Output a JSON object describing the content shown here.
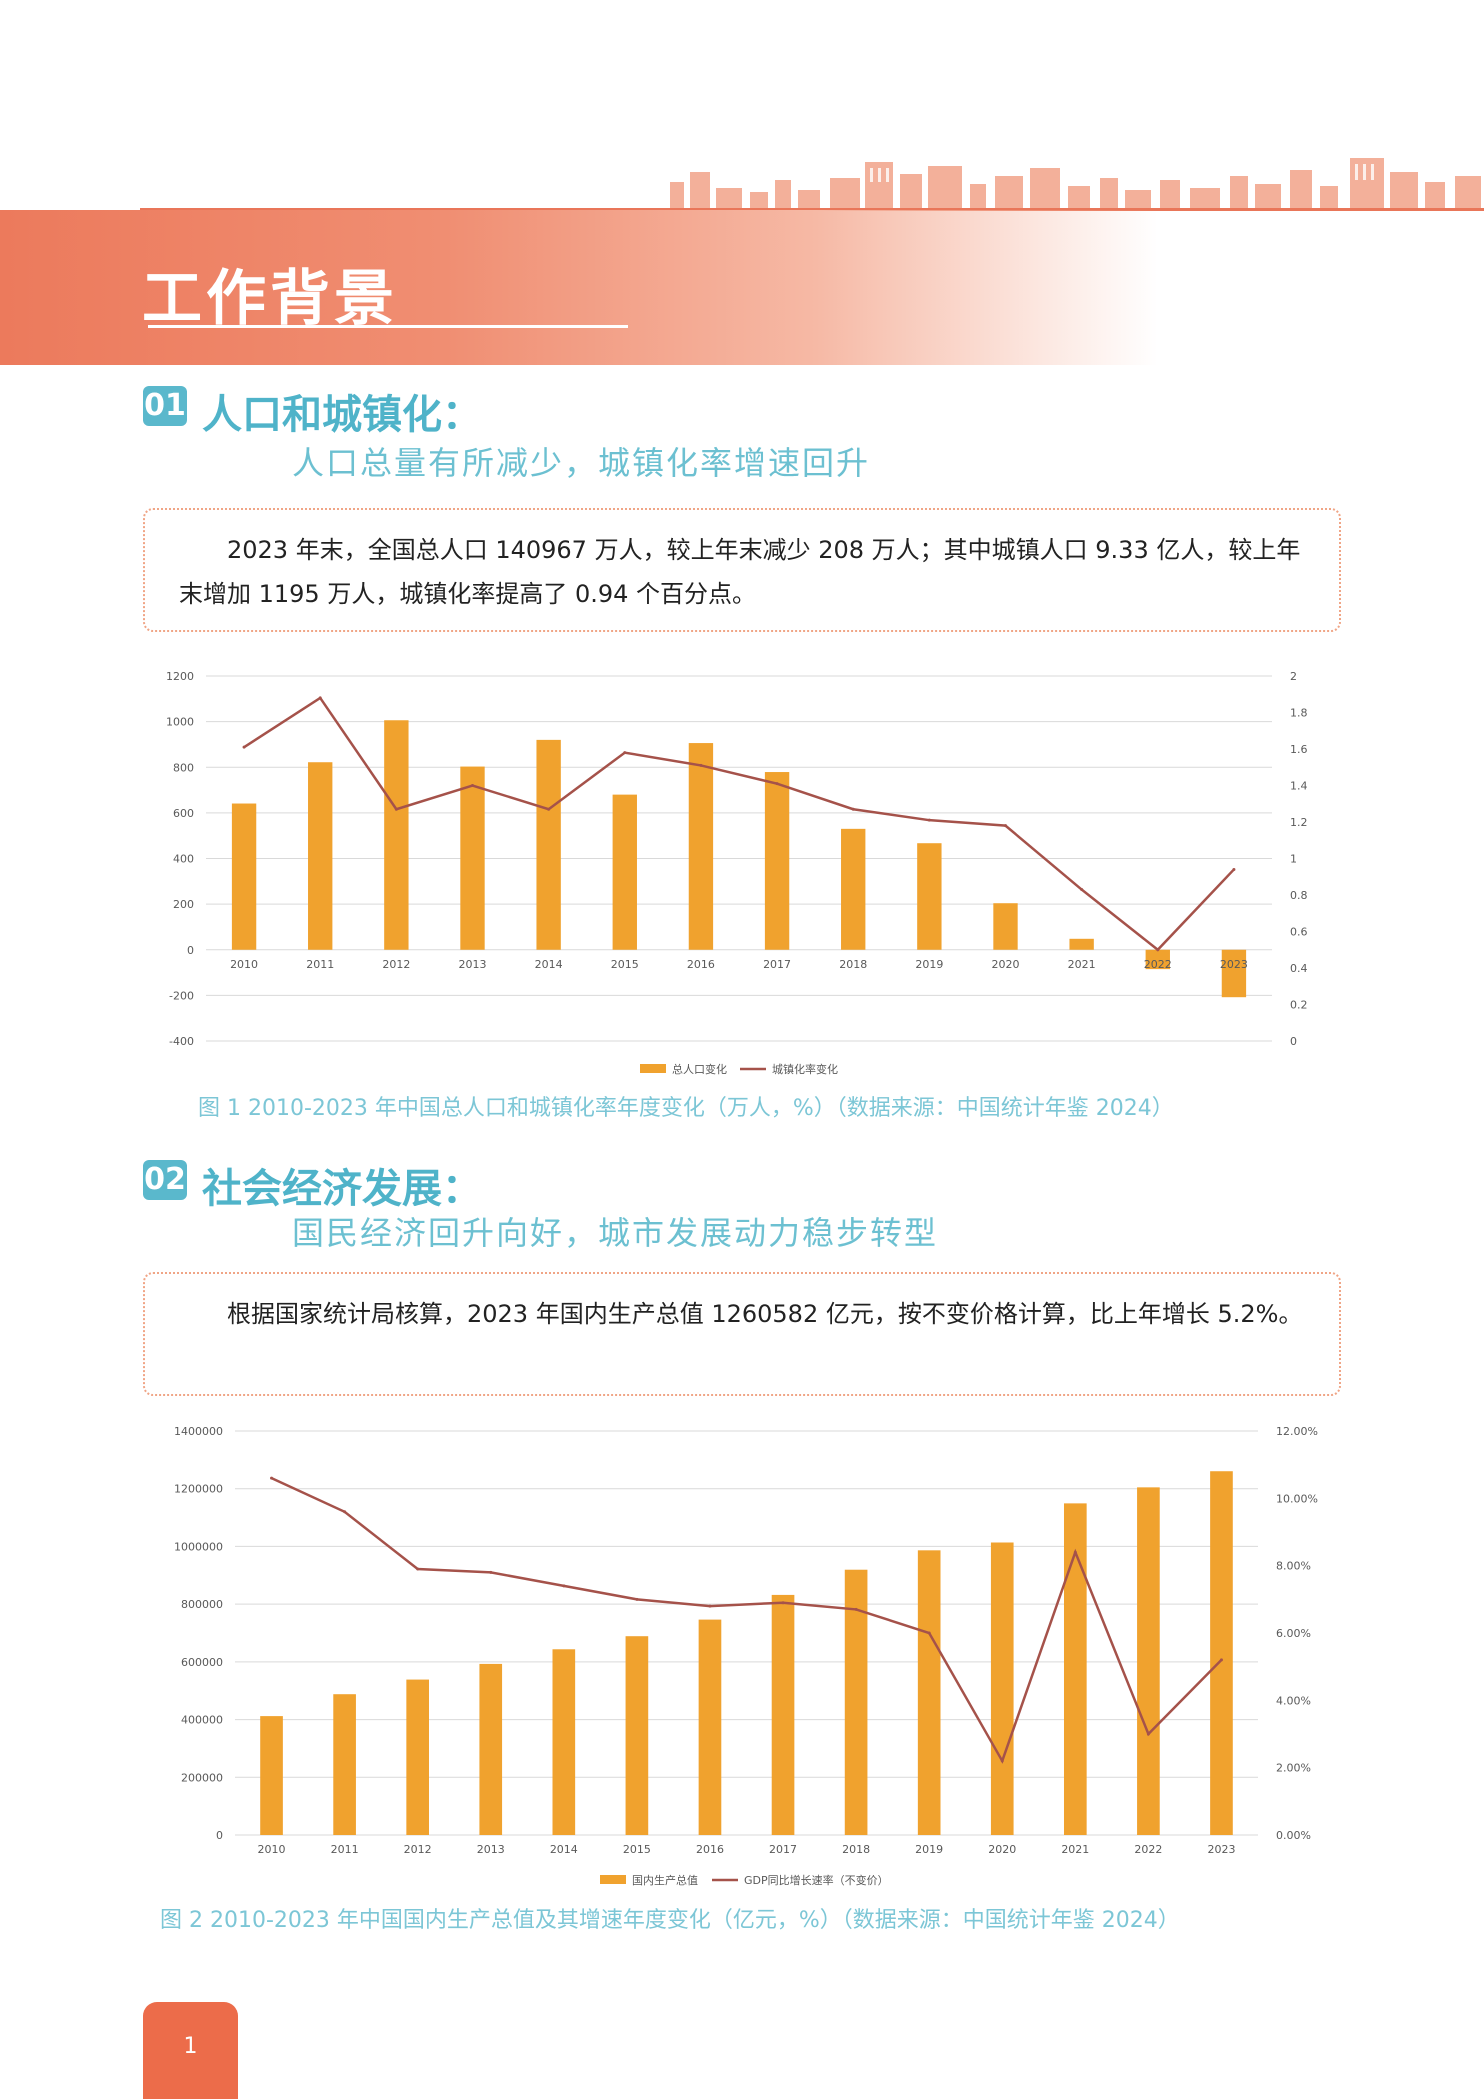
{
  "page": {
    "banner_title": "工作背景",
    "page_number": "1"
  },
  "section1": {
    "badge": "01",
    "title": "人口和城镇化：",
    "subtitle": "人口总量有所减少，城镇化率增速回升",
    "body": "2023 年末，全国总人口 140967 万人，较上年末减少 208 万人；其中城镇人口 9.33 亿人，较上年末增加 1195 万人，城镇化率提高了 0.94 个百分点。",
    "caption": "图 1  2010-2023 年中国总人口和城镇化率年度变化（万人，%）（数据来源：中国统计年鉴 2024）"
  },
  "section2": {
    "badge": "02",
    "title": "社会经济发展：",
    "subtitle": "国民经济回升向好，城市发展动力稳步转型",
    "body": "根据国家统计局核算，2023 年国内生产总值 1260582 亿元，按不变价格计算，比上年增长 5.2%。",
    "caption": "图 2  2010-2023 年中国国内生产总值及其增速年度变化（亿元，%）（数据来源：中国统计年鉴 2024）"
  },
  "colors": {
    "bar": "#f0a22e",
    "line": "#a5524a",
    "accent": "#ec7a5c",
    "teal": "#5ab8cc"
  },
  "chart_data": [
    {
      "type": "bar",
      "categories": [
        "2010",
        "2011",
        "2012",
        "2013",
        "2014",
        "2015",
        "2016",
        "2017",
        "2018",
        "2019",
        "2020",
        "2021",
        "2022",
        "2023"
      ],
      "series": [
        {
          "name": "总人口变化",
          "type": "bar",
          "axis": "left",
          "values": [
            641,
            822,
            1006,
            803,
            920,
            680,
            906,
            779,
            530,
            467,
            204,
            48,
            -85,
            -208
          ]
        },
        {
          "name": "城镇化率变化",
          "type": "line",
          "axis": "right",
          "values": [
            1.61,
            1.88,
            1.27,
            1.4,
            1.27,
            1.58,
            1.51,
            1.41,
            1.27,
            1.21,
            1.18,
            0.83,
            0.5,
            0.94
          ]
        }
      ],
      "y_left": {
        "min": -400,
        "max": 1200,
        "step": 200,
        "ticks": [
          "1200",
          "1000",
          "800",
          "600",
          "400",
          "200",
          "0",
          "-200",
          "-400"
        ]
      },
      "y_right": {
        "min": 0,
        "max": 2,
        "step": 0.2,
        "ticks": [
          "2",
          "1.8",
          "1.6",
          "1.4",
          "1.2",
          "1",
          "0.8",
          "0.6",
          "0.4",
          "0.2",
          "0"
        ]
      },
      "grid": true,
      "legend": "bottom-center"
    },
    {
      "type": "bar",
      "categories": [
        "2010",
        "2011",
        "2012",
        "2013",
        "2014",
        "2015",
        "2016",
        "2017",
        "2018",
        "2019",
        "2020",
        "2021",
        "2022",
        "2023"
      ],
      "series": [
        {
          "name": "国内生产总值",
          "type": "bar",
          "axis": "left",
          "values": [
            412000,
            487900,
            538600,
            592900,
            643600,
            688900,
            746400,
            832000,
            919300,
            986500,
            1013600,
            1149200,
            1204700,
            1260600
          ]
        },
        {
          "name": "GDP同比增长速率（不变价）",
          "type": "line",
          "axis": "right",
          "values": [
            10.6,
            9.6,
            7.9,
            7.8,
            7.4,
            7.0,
            6.8,
            6.9,
            6.7,
            6.0,
            2.2,
            8.4,
            3.0,
            5.2
          ]
        }
      ],
      "y_left": {
        "min": 0,
        "max": 1400000,
        "step": 200000,
        "ticks": [
          "1400000",
          "1200000",
          "1000000",
          "800000",
          "600000",
          "400000",
          "200000",
          "0"
        ]
      },
      "y_right": {
        "min": 0,
        "max": 12,
        "step": 2,
        "ticks": [
          "12.00%",
          "10.00%",
          "8.00%",
          "6.00%",
          "4.00%",
          "2.00%",
          "0.00%"
        ]
      },
      "grid": true,
      "legend": "bottom-center"
    }
  ]
}
